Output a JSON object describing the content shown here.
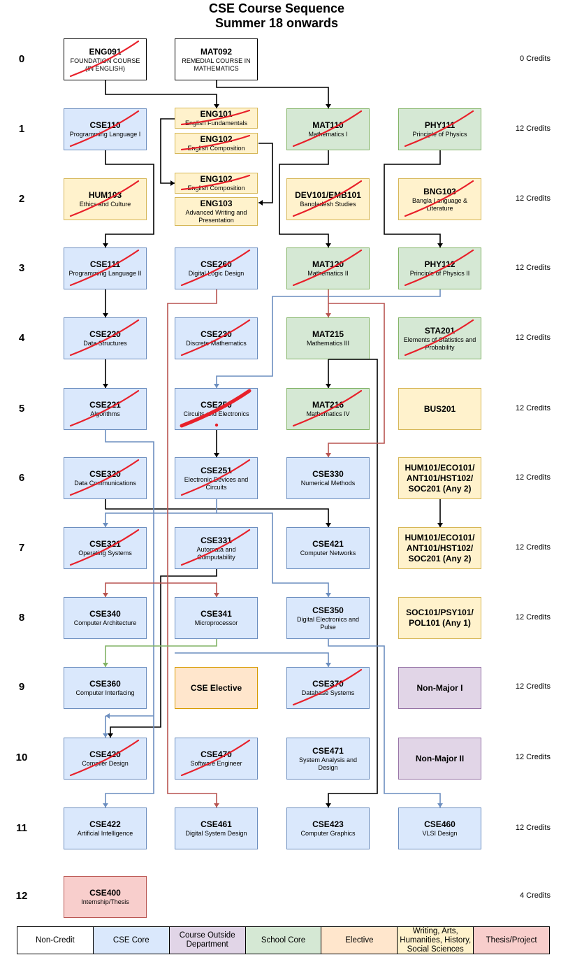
{
  "title_line1": "CSE Course Sequence",
  "title_line2": "Summer 18 onwards",
  "semesters": [
    {
      "label": "0",
      "credits": "0 Credits"
    },
    {
      "label": "1",
      "credits": "12 Credits"
    },
    {
      "label": "2",
      "credits": "12 Credits"
    },
    {
      "label": "3",
      "credits": "12 Credits"
    },
    {
      "label": "4",
      "credits": "12 Credits"
    },
    {
      "label": "5",
      "credits": "12 Credits"
    },
    {
      "label": "6",
      "credits": "12 Credits"
    },
    {
      "label": "7",
      "credits": "12 Credits"
    },
    {
      "label": "8",
      "credits": "12 Credits"
    },
    {
      "label": "9",
      "credits": "12 Credits"
    },
    {
      "label": "10",
      "credits": "12 Credits"
    },
    {
      "label": "11",
      "credits": "12 Credits"
    },
    {
      "label": "12",
      "credits": "4 Credits"
    }
  ],
  "courses": [
    {
      "id": "ENG091",
      "code": "ENG091",
      "name": "FOUNDATION COURSE (IN ENGLISH)",
      "type": "noncredit",
      "struck": true
    },
    {
      "id": "MAT092",
      "code": "MAT092",
      "name": "REMEDIAL COURSE IN MATHEMATICS",
      "type": "noncredit",
      "struck": false
    },
    {
      "id": "CSE110",
      "code": "CSE110",
      "name": "Programming Language I",
      "type": "core",
      "struck": true
    },
    {
      "id": "ENG101",
      "code": "ENG101",
      "name": "English Fundamentals",
      "type": "arts",
      "struck": true
    },
    {
      "id": "ENG102a",
      "code": "ENG102",
      "name": "English Composition",
      "type": "arts",
      "struck": true
    },
    {
      "id": "MAT110",
      "code": "MAT110",
      "name": "Mathematics I",
      "type": "school",
      "struck": true
    },
    {
      "id": "PHY111",
      "code": "PHY111",
      "name": "Principle of Physics",
      "type": "school",
      "struck": true
    },
    {
      "id": "HUM103",
      "code": "HUM103",
      "name": "Ethics and Culture",
      "type": "arts",
      "struck": true
    },
    {
      "id": "ENG102b",
      "code": "ENG102",
      "name": "English Composition",
      "type": "arts",
      "struck": true
    },
    {
      "id": "ENG103",
      "code": "ENG103",
      "name": "Advanced Writing and Presentation",
      "type": "arts",
      "struck": false
    },
    {
      "id": "DEV101",
      "code": "DEV101/EMB101",
      "name": "Bangladesh Studies",
      "type": "arts",
      "struck": true
    },
    {
      "id": "BNG103",
      "code": "BNG103",
      "name": "Bangla Language & Literature",
      "type": "arts",
      "struck": true
    },
    {
      "id": "CSE111",
      "code": "CSE111",
      "name": "Programming Language II",
      "type": "core",
      "struck": true
    },
    {
      "id": "CSE260",
      "code": "CSE260",
      "name": "Digital Logic Design",
      "type": "core",
      "struck": true
    },
    {
      "id": "MAT120",
      "code": "MAT120",
      "name": "Mathematics II",
      "type": "school",
      "struck": true
    },
    {
      "id": "PHY112",
      "code": "PHY112",
      "name": "Principle of Physics II",
      "type": "school",
      "struck": true
    },
    {
      "id": "CSE220",
      "code": "CSE220",
      "name": "Data Structures",
      "type": "core",
      "struck": true
    },
    {
      "id": "CSE230",
      "code": "CSE230",
      "name": "Discrete Mathematics",
      "type": "core",
      "struck": true
    },
    {
      "id": "MAT215",
      "code": "MAT215",
      "name": "Mathematics III",
      "type": "school",
      "struck": false
    },
    {
      "id": "STA201",
      "code": "STA201",
      "name": "Elements of Statistics and Probability",
      "type": "school",
      "struck": true
    },
    {
      "id": "CSE221",
      "code": "CSE221",
      "name": "Algorithms",
      "type": "core",
      "struck": true
    },
    {
      "id": "CSE250",
      "code": "CSE250",
      "name": "Circuits and Electronics",
      "type": "core",
      "struck": true
    },
    {
      "id": "MAT216",
      "code": "MAT216",
      "name": "Mathematics IV",
      "type": "school",
      "struck": true
    },
    {
      "id": "BUS201",
      "code": "BUS201",
      "name": "",
      "type": "arts",
      "struck": false
    },
    {
      "id": "CSE320",
      "code": "CSE320",
      "name": "Data Communications",
      "type": "core",
      "struck": true
    },
    {
      "id": "CSE251",
      "code": "CSE251",
      "name": "Electronic Devices and Circuits",
      "type": "core",
      "struck": true
    },
    {
      "id": "CSE330",
      "code": "CSE330",
      "name": "Numerical Methods",
      "type": "core",
      "struck": false
    },
    {
      "id": "HUM6",
      "code": "HUM101/ECO101/ ANT101/HST102/ SOC201 (Any 2)",
      "name": "",
      "type": "arts",
      "struck": false
    },
    {
      "id": "CSE321",
      "code": "CSE321",
      "name": "Operating Systems",
      "type": "core",
      "struck": true
    },
    {
      "id": "CSE331",
      "code": "CSE331",
      "name": "Automata and Computability",
      "type": "core",
      "struck": true
    },
    {
      "id": "CSE421",
      "code": "CSE421",
      "name": "Computer Networks",
      "type": "core",
      "struck": false
    },
    {
      "id": "HUM7",
      "code": "HUM101/ECO101/ ANT101/HST102/ SOC201 (Any 2)",
      "name": "",
      "type": "arts",
      "struck": false
    },
    {
      "id": "CSE340",
      "code": "CSE340",
      "name": "Computer Architecture",
      "type": "core",
      "struck": false
    },
    {
      "id": "CSE341",
      "code": "CSE341",
      "name": "Microprocessor",
      "type": "core",
      "struck": false
    },
    {
      "id": "CSE350",
      "code": "CSE350",
      "name": "Digital Electronics and Pulse",
      "type": "core",
      "struck": false
    },
    {
      "id": "SOC101",
      "code": "SOC101/PSY101/ POL101 (Any 1)",
      "name": "",
      "type": "arts",
      "struck": false
    },
    {
      "id": "CSE360",
      "code": "CSE360",
      "name": "Computer Interfacing",
      "type": "core",
      "struck": false
    },
    {
      "id": "CSEEL",
      "code": "CSE Elective",
      "name": "",
      "type": "elective",
      "struck": false
    },
    {
      "id": "CSE370",
      "code": "CSE370",
      "name": "Database Systems",
      "type": "core",
      "struck": true
    },
    {
      "id": "NM1",
      "code": "Non-Major I",
      "name": "",
      "type": "outside",
      "struck": false
    },
    {
      "id": "CSE420",
      "code": "CSE420",
      "name": "Compiler Design",
      "type": "core",
      "struck": true
    },
    {
      "id": "CSE470",
      "code": "CSE470",
      "name": "Software Engineer",
      "type": "core",
      "struck": true
    },
    {
      "id": "CSE471",
      "code": "CSE471",
      "name": "System Analysis and Design",
      "type": "core",
      "struck": false
    },
    {
      "id": "NM2",
      "code": "Non-Major II",
      "name": "",
      "type": "outside",
      "struck": false
    },
    {
      "id": "CSE422",
      "code": "CSE422",
      "name": "Artificial Intelligence",
      "type": "core",
      "struck": false
    },
    {
      "id": "CSE461",
      "code": "CSE461",
      "name": "Digital System Design",
      "type": "core",
      "struck": false
    },
    {
      "id": "CSE423",
      "code": "CSE423",
      "name": "Computer Graphics",
      "type": "core",
      "struck": false
    },
    {
      "id": "CSE460",
      "code": "CSE460",
      "name": "VLSI Design",
      "type": "core",
      "struck": false
    },
    {
      "id": "CSE400",
      "code": "CSE400",
      "name": "Internship/Thesis",
      "type": "thesis",
      "struck": false
    }
  ],
  "legend": [
    {
      "label": "Non-Credit",
      "type": "noncredit"
    },
    {
      "label": "CSE Core",
      "type": "core"
    },
    {
      "label": "Course Outside Department",
      "type": "outside"
    },
    {
      "label": "School Core",
      "type": "school"
    },
    {
      "label": "Elective",
      "type": "elective"
    },
    {
      "label": "Writing, Arts, Humanities, History, Social Sciences",
      "type": "arts"
    },
    {
      "label": "Thesis/Project",
      "type": "thesis"
    }
  ],
  "colors": {
    "connector_black": "#000000",
    "connector_blue": "#6c8ebf",
    "connector_red": "#b85450",
    "connector_green": "#82b366",
    "strike": "#e8202a"
  }
}
